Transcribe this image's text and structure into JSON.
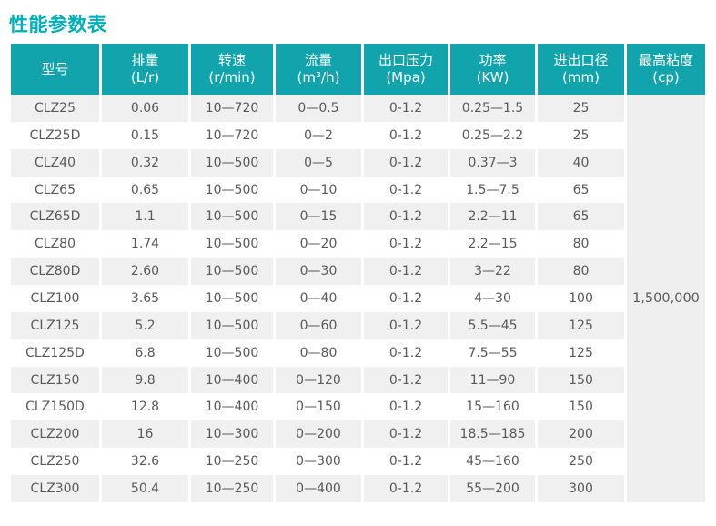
{
  "page_title": "性能参数表",
  "colors": {
    "title_teal": "#00afb9",
    "header_teal": "#12a4ac",
    "row_alt_gray": "#f0f0f0",
    "merged_cell_gray": "#efefef",
    "cell_text": "#58595b",
    "header_text": "#ffffff"
  },
  "table": {
    "columns": [
      {
        "key": "model",
        "label": "型号",
        "unit": ""
      },
      {
        "key": "displacement",
        "label": "排量",
        "unit": "(L/r)"
      },
      {
        "key": "speed",
        "label": "转速",
        "unit": "(r/min)"
      },
      {
        "key": "flow",
        "label": "流量",
        "unit": "(m³/h)"
      },
      {
        "key": "outlet-pressure",
        "label": "出口压力",
        "unit": "(Mpa)"
      },
      {
        "key": "power",
        "label": "功率",
        "unit": "(KW)"
      },
      {
        "key": "port-diameter",
        "label": "进出口径",
        "unit": "(mm)"
      },
      {
        "key": "max-viscosity",
        "label": "最高粘度",
        "unit": "(cp)"
      }
    ],
    "rows": [
      [
        "CLZ25",
        "0.06",
        "10—720",
        "0—0.5",
        "0-1.2",
        "0.25—1.5",
        "25"
      ],
      [
        "CLZ25D",
        "0.15",
        "10—720",
        "0—2",
        "0-1.2",
        "0.25—2.2",
        "25"
      ],
      [
        "CLZ40",
        "0.32",
        "10—500",
        "0—5",
        "0-1.2",
        "0.37—3",
        "40"
      ],
      [
        "CLZ65",
        "0.65",
        "10—500",
        "0—10",
        "0-1.2",
        "1.5—7.5",
        "65"
      ],
      [
        "CLZ65D",
        "1.1",
        "10—500",
        "0—15",
        "0-1.2",
        "2.2—11",
        "65"
      ],
      [
        "CLZ80",
        "1.74",
        "10—500",
        "0—20",
        "0-1.2",
        "2.2—15",
        "80"
      ],
      [
        "CLZ80D",
        "2.60",
        "10—500",
        "0—30",
        "0-1.2",
        "3—22",
        "80"
      ],
      [
        "CLZ100",
        "3.65",
        "10—500",
        "0—40",
        "0-1.2",
        "4—30",
        "100"
      ],
      [
        "CLZ125",
        "5.2",
        "10—500",
        "0—60",
        "0-1.2",
        "5.5—45",
        "125"
      ],
      [
        "CLZ125D",
        "6.8",
        "10—500",
        "0—80",
        "0-1.2",
        "7.5—55",
        "125"
      ],
      [
        "CLZ150",
        "9.8",
        "10—400",
        "0—120",
        "0-1.2",
        "11—90",
        "150"
      ],
      [
        "CLZ150D",
        "12.8",
        "10—400",
        "0—150",
        "0-1.2",
        "15—160",
        "150"
      ],
      [
        "CLZ200",
        "16",
        "10—300",
        "0—200",
        "0-1.2",
        "18.5—185",
        "200"
      ],
      [
        "CLZ250",
        "32.6",
        "10—250",
        "0—300",
        "0-1.2",
        "45—160",
        "250"
      ],
      [
        "CLZ300",
        "50.4",
        "10—250",
        "0—400",
        "0-1.2",
        "55—200",
        "300"
      ]
    ],
    "merged_max_viscosity": "1,500,000"
  }
}
